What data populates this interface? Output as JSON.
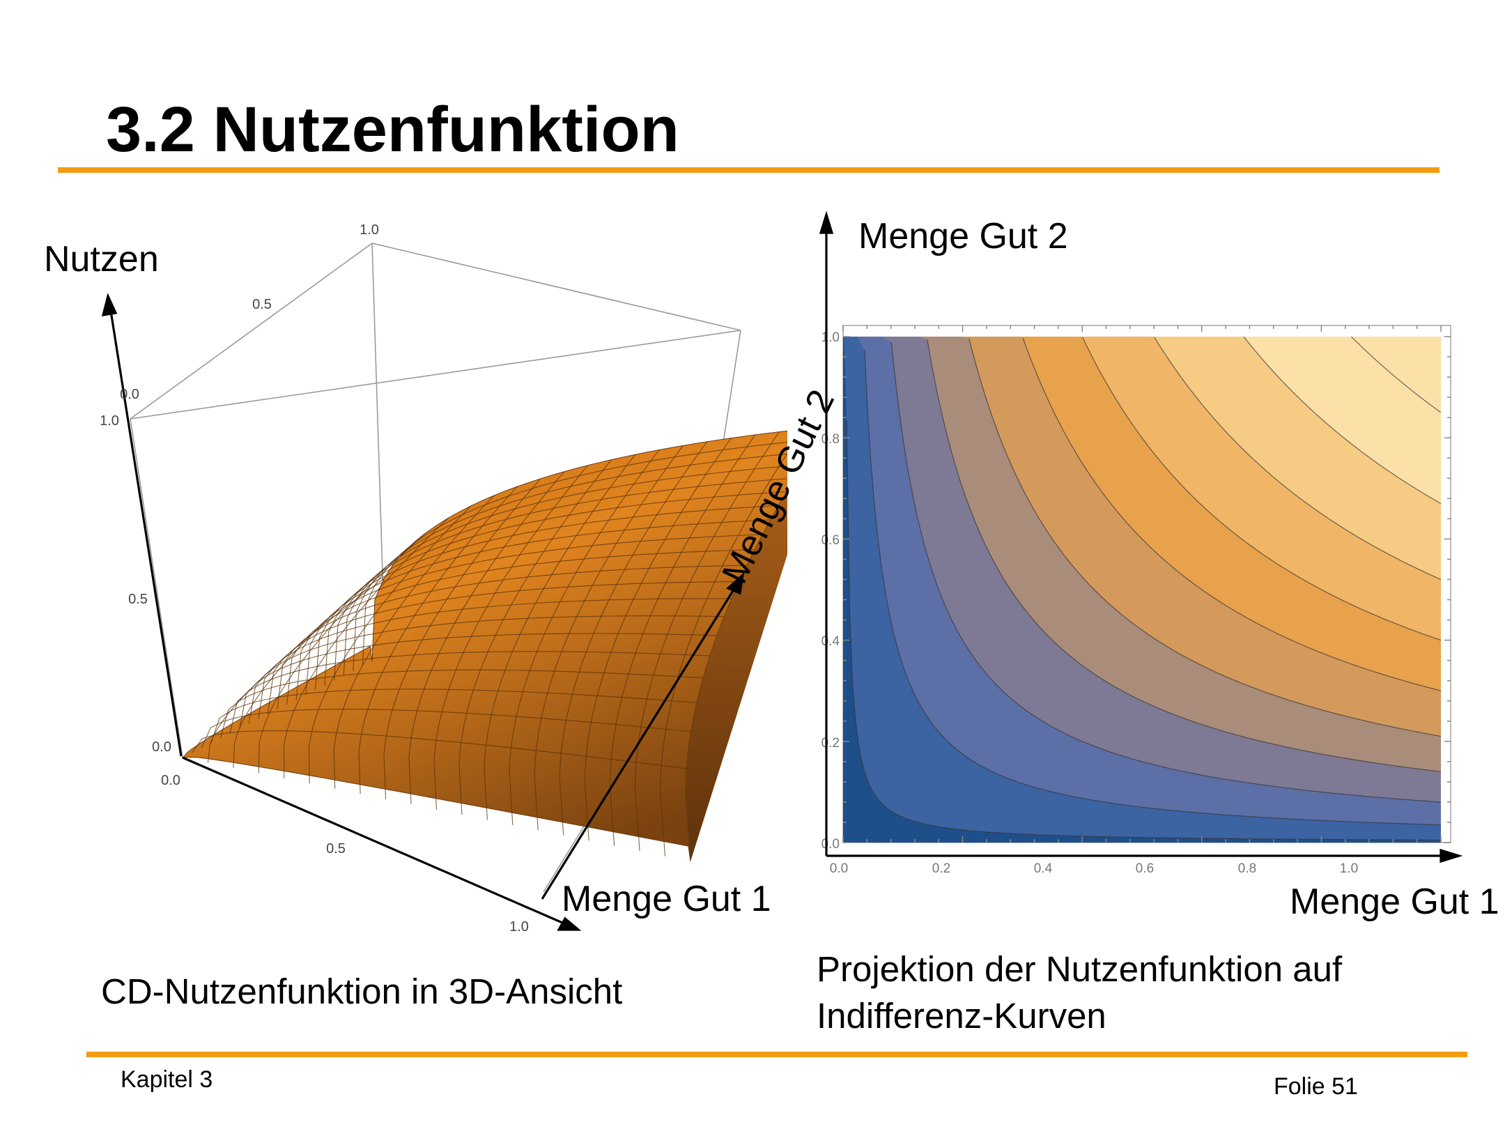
{
  "slide": {
    "title": "3.2 Nutzenfunktion",
    "accent_color": "#f39c12",
    "footer_left": "Kapitel 3",
    "footer_right": "Folie 51"
  },
  "left_figure": {
    "axis_z_label": "Nutzen",
    "axis_x_label": "Menge Gut 1",
    "axis_y_label": "Menge Gut 2",
    "z_ticks": [
      "1.0",
      "0.5",
      "0.0"
    ],
    "x_ticks": [
      "0.0",
      "0.5",
      "1.0"
    ],
    "y_ticks": [
      "0.0",
      "0.5",
      "1.0"
    ],
    "surface_color": "#d9801e",
    "caption": "CD-Nutzenfunktion in 3D-Ansicht"
  },
  "right_figure": {
    "axis_y_label": "Menge Gut 2",
    "axis_x_label": "Menge Gut 1",
    "x_ticks": [
      "0.0",
      "0.2",
      "0.4",
      "0.6",
      "0.8",
      "1.0"
    ],
    "y_ticks": [
      "0.0",
      "0.2",
      "0.4",
      "0.6",
      "0.8",
      "1.0"
    ],
    "caption_line1": "Projektion der Nutzenfunktion auf",
    "caption_line2": "Indifferenz-Kurven",
    "band_colors": [
      "#1f4f8a",
      "#3c63a2",
      "#5c6fa6",
      "#7e7a95",
      "#a98c79",
      "#d49a5c",
      "#e8a24c",
      "#f0b566",
      "#f6cb84",
      "#fbe0a8"
    ]
  }
}
